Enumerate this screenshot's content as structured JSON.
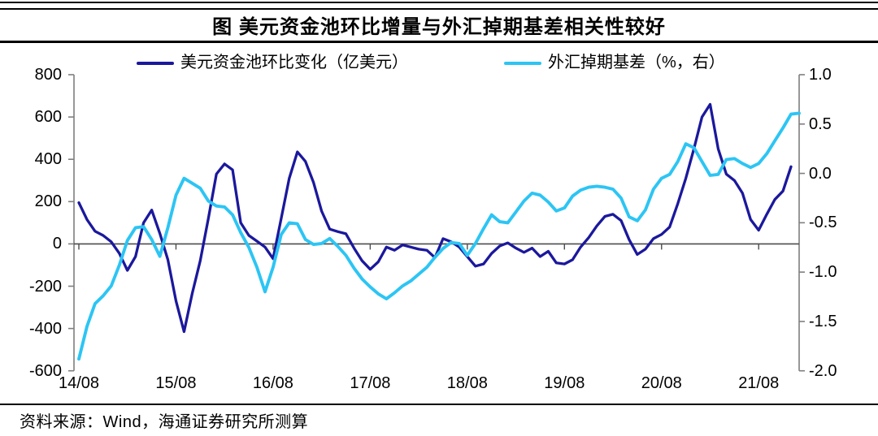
{
  "title": "图 美元资金池环比增量与外汇掉期基差相关性较好",
  "source": "资料来源：Wind，海通证券研究所测算",
  "colors": {
    "navy": "#1B189D",
    "cyan": "#2CC5F4",
    "axis": "#7f7f7f",
    "zero_line": "#4d4d4d",
    "text": "#000000"
  },
  "legend": {
    "items": [
      {
        "label": "美元资金池环比变化（亿美元）",
        "color": "#1B189D"
      },
      {
        "label": "外汇掉期基差（%，右）",
        "color": "#2CC5F4"
      }
    ]
  },
  "chart_data": {
    "type": "line",
    "title": "图 美元资金池环比增量与外汇掉期基差相关性较好",
    "x_description": "monthly, from 2014/08; tick every 12 months",
    "x_tick_labels": [
      "14/08",
      "15/08",
      "16/08",
      "17/08",
      "18/08",
      "19/08",
      "20/08",
      "21/08"
    ],
    "x_tick_month_indices": [
      0,
      12,
      24,
      36,
      48,
      60,
      72,
      84
    ],
    "left_axis": {
      "min": -600,
      "max": 800,
      "step": 200,
      "tick_labels": [
        "800",
        "600",
        "400",
        "200",
        "0",
        "-200",
        "-400",
        "-600"
      ]
    },
    "right_axis": {
      "min": -2.0,
      "max": 1.0,
      "step": 0.5,
      "tick_labels": [
        "1.0",
        "0.5",
        "0.0",
        "-0.5",
        "-1.0",
        "-1.5",
        "-2.0"
      ]
    },
    "grid": false,
    "legend_position": "top",
    "series": [
      {
        "name": "美元资金池环比变化（亿美元）",
        "axis": "left",
        "color": "#1B189D",
        "stroke_width": 3.3,
        "values": [
          195,
          115,
          60,
          40,
          10,
          -45,
          -125,
          -60,
          100,
          160,
          50,
          -75,
          -270,
          -415,
          -235,
          -80,
          120,
          330,
          378,
          350,
          100,
          40,
          13,
          -15,
          -70,
          120,
          310,
          435,
          390,
          290,
          155,
          70,
          58,
          48,
          -20,
          -80,
          -120,
          -85,
          -15,
          -30,
          -5,
          -15,
          -25,
          -30,
          -65,
          25,
          10,
          -15,
          -60,
          -105,
          -95,
          -45,
          -10,
          5,
          -20,
          -40,
          -20,
          -60,
          -35,
          -90,
          -95,
          -75,
          -15,
          30,
          85,
          130,
          140,
          110,
          20,
          -50,
          -25,
          25,
          45,
          80,
          190,
          310,
          450,
          600,
          660,
          450,
          330,
          300,
          240,
          115,
          65,
          140,
          210,
          250,
          365
        ]
      },
      {
        "name": "外汇掉期基差（%，右）",
        "axis": "right",
        "color": "#2CC5F4",
        "stroke_width": 3.9,
        "values": [
          -1.88,
          -1.55,
          -1.32,
          -1.24,
          -1.14,
          -0.93,
          -0.68,
          -0.55,
          -0.54,
          -0.67,
          -0.84,
          -0.55,
          -0.22,
          -0.05,
          -0.1,
          -0.15,
          -0.28,
          -0.33,
          -0.34,
          -0.42,
          -0.6,
          -0.75,
          -0.95,
          -1.2,
          -0.95,
          -0.62,
          -0.5,
          -0.51,
          -0.67,
          -0.72,
          -0.71,
          -0.66,
          -0.74,
          -0.83,
          -0.96,
          -1.07,
          -1.15,
          -1.22,
          -1.27,
          -1.21,
          -1.14,
          -1.09,
          -1.02,
          -0.95,
          -0.85,
          -0.76,
          -0.7,
          -0.71,
          -0.83,
          -0.71,
          -0.56,
          -0.42,
          -0.49,
          -0.5,
          -0.39,
          -0.28,
          -0.2,
          -0.22,
          -0.29,
          -0.38,
          -0.35,
          -0.23,
          -0.17,
          -0.14,
          -0.13,
          -0.14,
          -0.16,
          -0.25,
          -0.44,
          -0.48,
          -0.37,
          -0.16,
          -0.05,
          -0.01,
          0.12,
          0.3,
          0.26,
          0.12,
          -0.02,
          -0.01,
          0.14,
          0.15,
          0.1,
          0.06,
          0.1,
          0.2,
          0.33,
          0.46,
          0.6,
          0.61
        ]
      }
    ]
  }
}
